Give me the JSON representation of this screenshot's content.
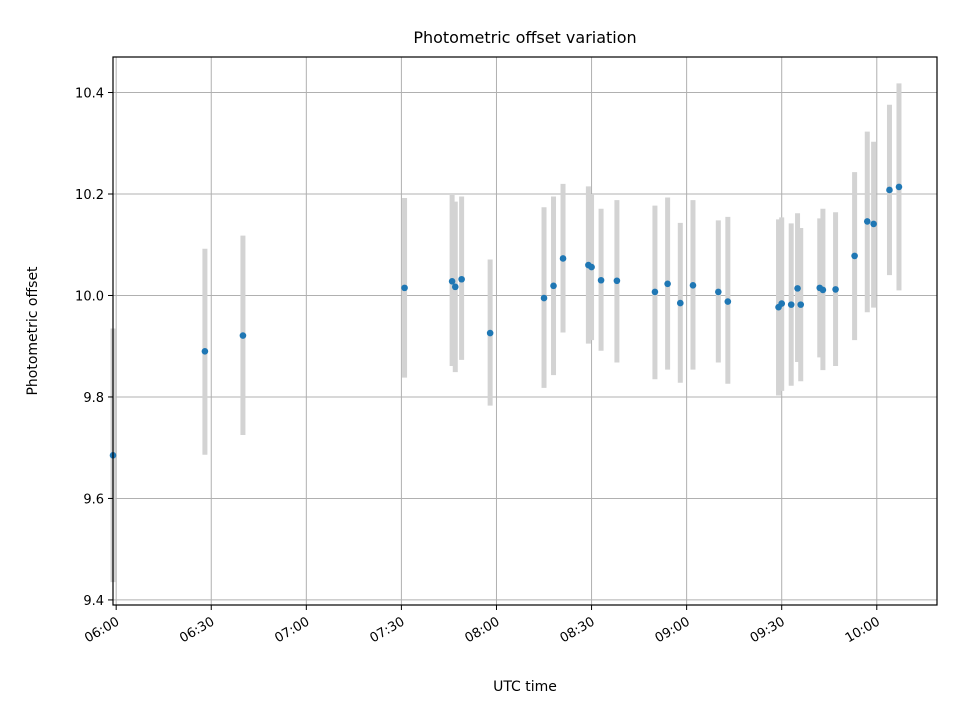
{
  "chart_data": {
    "type": "scatter",
    "title": "Photometric offset variation",
    "xlabel": "UTC time",
    "ylabel": "Photometric offset",
    "xlim": [
      "05:59",
      "10:19"
    ],
    "ylim": [
      9.39,
      10.47
    ],
    "x_ticks": [
      "06:00",
      "06:30",
      "07:00",
      "07:30",
      "08:00",
      "08:30",
      "09:00",
      "09:30",
      "10:00"
    ],
    "y_ticks": [
      9.4,
      9.6,
      9.8,
      10.0,
      10.2,
      10.4
    ],
    "grid": true,
    "colors": {
      "point": "#1f77b4",
      "errorbar": "#d3d3d3",
      "grid": "#b0b0b0"
    },
    "points": [
      {
        "x": "05:59",
        "y": 9.685,
        "low": 9.435,
        "high": 9.935
      },
      {
        "x": "06:28",
        "y": 9.89,
        "low": 9.686,
        "high": 10.092
      },
      {
        "x": "06:40",
        "y": 9.921,
        "low": 9.725,
        "high": 10.118
      },
      {
        "x": "07:31",
        "y": 10.015,
        "low": 9.838,
        "high": 10.192
      },
      {
        "x": "07:46",
        "y": 10.028,
        "low": 9.861,
        "high": 10.198
      },
      {
        "x": "07:47",
        "y": 10.017,
        "low": 9.849,
        "high": 10.185
      },
      {
        "x": "07:49",
        "y": 10.032,
        "low": 9.873,
        "high": 10.195
      },
      {
        "x": "07:58",
        "y": 9.926,
        "low": 9.783,
        "high": 10.071
      },
      {
        "x": "08:15",
        "y": 9.995,
        "low": 9.818,
        "high": 10.174
      },
      {
        "x": "08:18",
        "y": 10.019,
        "low": 9.843,
        "high": 10.195
      },
      {
        "x": "08:21",
        "y": 10.073,
        "low": 9.927,
        "high": 10.22
      },
      {
        "x": "08:29",
        "y": 10.06,
        "low": 9.905,
        "high": 10.215
      },
      {
        "x": "08:30",
        "y": 10.056,
        "low": 9.912,
        "high": 10.2
      },
      {
        "x": "08:33",
        "y": 10.03,
        "low": 9.891,
        "high": 10.171
      },
      {
        "x": "08:38",
        "y": 10.029,
        "low": 9.868,
        "high": 10.188
      },
      {
        "x": "08:50",
        "y": 10.007,
        "low": 9.835,
        "high": 10.177
      },
      {
        "x": "08:54",
        "y": 10.023,
        "low": 9.854,
        "high": 10.193
      },
      {
        "x": "08:58",
        "y": 9.985,
        "low": 9.828,
        "high": 10.143
      },
      {
        "x": "09:02",
        "y": 10.02,
        "low": 9.854,
        "high": 10.188
      },
      {
        "x": "09:10",
        "y": 10.007,
        "low": 9.868,
        "high": 10.148
      },
      {
        "x": "09:13",
        "y": 9.988,
        "low": 9.826,
        "high": 10.155
      },
      {
        "x": "09:29",
        "y": 9.977,
        "low": 9.803,
        "high": 10.15
      },
      {
        "x": "09:30",
        "y": 9.984,
        "low": 9.812,
        "high": 10.154
      },
      {
        "x": "09:33",
        "y": 9.982,
        "low": 9.822,
        "high": 10.142
      },
      {
        "x": "09:35",
        "y": 10.014,
        "low": 9.869,
        "high": 10.162
      },
      {
        "x": "09:36",
        "y": 9.982,
        "low": 9.831,
        "high": 10.133
      },
      {
        "x": "09:42",
        "y": 10.015,
        "low": 9.878,
        "high": 10.152
      },
      {
        "x": "09:43",
        "y": 10.011,
        "low": 9.853,
        "high": 10.171
      },
      {
        "x": "09:47",
        "y": 10.012,
        "low": 9.861,
        "high": 10.164
      },
      {
        "x": "09:53",
        "y": 10.078,
        "low": 9.912,
        "high": 10.243
      },
      {
        "x": "09:57",
        "y": 10.146,
        "low": 9.967,
        "high": 10.323
      },
      {
        "x": "09:59",
        "y": 10.141,
        "low": 9.976,
        "high": 10.303
      },
      {
        "x": "10:04",
        "y": 10.208,
        "low": 10.04,
        "high": 10.376
      },
      {
        "x": "10:07",
        "y": 10.214,
        "low": 10.01,
        "high": 10.418
      }
    ]
  }
}
